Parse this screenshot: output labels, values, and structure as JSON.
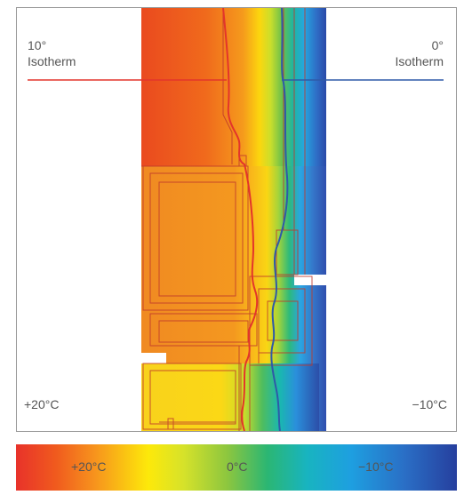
{
  "labels": {
    "isotherm_10_value": "10°",
    "isotherm_10_text": "Isotherm",
    "isotherm_0_value": "0°",
    "isotherm_0_text": "Isotherm",
    "inside_temp": "+20°C",
    "outside_temp": "−10°C"
  },
  "colorbar": {
    "ticks": [
      "+20°C",
      "0°C",
      "−10°C"
    ]
  },
  "colors": {
    "isotherm_10": "#e3352b",
    "isotherm_0": "#2e5aa8"
  }
}
